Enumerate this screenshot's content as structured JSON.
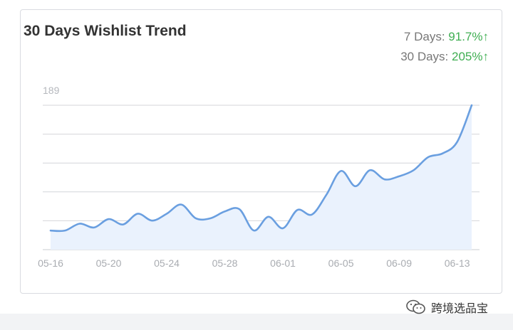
{
  "card": {
    "title": "30 Days Wishlist Trend",
    "stats": [
      {
        "label": "7 Days:",
        "value": "91.7%",
        "arrow": "↑"
      },
      {
        "label": "30 Days:",
        "value": "205%",
        "arrow": "↑"
      }
    ]
  },
  "watermark": {
    "text": "跨境选品宝",
    "icon": "wechat-icon"
  },
  "colors": {
    "line": "#6a9fe0",
    "fill": "#eaf2fd",
    "grid": "#d4d6da",
    "up": "#3fae52"
  },
  "chart_data": {
    "type": "area",
    "title": "30 Days Wishlist Trend",
    "xlabel": "",
    "ylabel": "",
    "ymax_label": "189",
    "ylim": [
      0,
      189
    ],
    "grid": true,
    "x": [
      "05-16",
      "05-17",
      "05-18",
      "05-19",
      "05-20",
      "05-21",
      "05-22",
      "05-23",
      "05-24",
      "05-25",
      "05-26",
      "05-27",
      "05-28",
      "05-29",
      "05-30",
      "05-31",
      "06-01",
      "06-02",
      "06-03",
      "06-04",
      "06-05",
      "06-06",
      "06-07",
      "06-08",
      "06-09",
      "06-10",
      "06-11",
      "06-12",
      "06-13",
      "06-14"
    ],
    "xticks": [
      "05-16",
      "05-20",
      "05-24",
      "05-28",
      "06-01",
      "06-05",
      "06-09",
      "06-13"
    ],
    "series": [
      {
        "values": [
          25,
          25,
          34,
          29,
          40,
          33,
          47,
          38,
          47,
          59,
          41,
          41,
          50,
          53,
          25,
          43,
          28,
          52,
          46,
          72,
          103,
          83,
          104,
          92,
          96,
          104,
          121,
          126,
          141,
          189
        ]
      }
    ]
  }
}
